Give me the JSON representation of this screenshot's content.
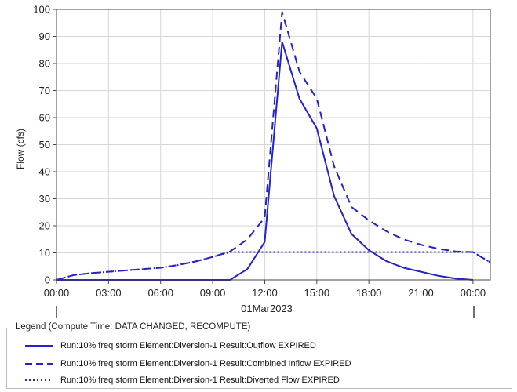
{
  "chart_data": {
    "type": "line",
    "ylabel": "Flow (cfs)",
    "ylim": [
      0,
      100
    ],
    "yticks": [
      "0",
      "10",
      "20",
      "30",
      "40",
      "50",
      "60",
      "70",
      "80",
      "90",
      "100"
    ],
    "xlim_hours": [
      0,
      25
    ],
    "xticks": [
      {
        "hour": 0,
        "label": "00:00"
      },
      {
        "hour": 3,
        "label": "03:00"
      },
      {
        "hour": 6,
        "label": "06:00"
      },
      {
        "hour": 9,
        "label": "09:00"
      },
      {
        "hour": 12,
        "label": "12:00"
      },
      {
        "hour": 15,
        "label": "15:00"
      },
      {
        "hour": 18,
        "label": "18:00"
      },
      {
        "hour": 21,
        "label": "21:00"
      },
      {
        "hour": 24,
        "label": "00:00"
      }
    ],
    "date_label": "01Mar2023",
    "grid": true,
    "line_color": "#2323c8",
    "series": [
      {
        "name": "Run:10% freq storm Element:Diversion-1 Result:Outflow EXPIRED",
        "style": "solid",
        "x": [
          0,
          10,
          11,
          12,
          13,
          14,
          15,
          16,
          17,
          18,
          19,
          20,
          21,
          22,
          23,
          24
        ],
        "y": [
          0,
          0,
          4,
          14,
          88,
          67,
          56,
          31,
          17,
          11,
          7,
          4.5,
          3,
          1.5,
          0.5,
          0
        ]
      },
      {
        "name": "Run:10% freq storm Element:Diversion-1 Result:Combined Inflow EXPIRED",
        "style": "dashed",
        "x": [
          0,
          1,
          2,
          3,
          4,
          5,
          6,
          7,
          8,
          9,
          10,
          11,
          12,
          13,
          14,
          15,
          16,
          17,
          18,
          19,
          20,
          21,
          22,
          23,
          24,
          25
        ],
        "y": [
          0,
          1.8,
          2.5,
          3,
          3.5,
          4,
          4.5,
          5.5,
          6.8,
          8.5,
          10.5,
          15,
          23,
          99,
          77,
          67,
          42,
          27,
          22,
          18,
          15,
          13,
          11.5,
          10.5,
          10.3,
          6.5
        ]
      },
      {
        "name": "Run:10% freq storm Element:Diversion-1 Result:Diverted Flow EXPIRED",
        "style": "dotted",
        "x": [
          0,
          1,
          2,
          3,
          4,
          5,
          6,
          7,
          8,
          9,
          10,
          11,
          12,
          24,
          25
        ],
        "y": [
          0,
          1.8,
          2.5,
          3,
          3.5,
          4,
          4.5,
          5.5,
          6.8,
          8.5,
          10.3,
          10.3,
          10.3,
          10.3,
          6.5
        ]
      }
    ]
  },
  "legend": {
    "title": "Legend (Compute Time: DATA CHANGED, RECOMPUTE)",
    "items": [
      "Run:10% freq storm Element:Diversion-1 Result:Outflow EXPIRED",
      "Run:10% freq storm Element:Diversion-1 Result:Combined Inflow EXPIRED",
      "Run:10% freq storm Element:Diversion-1 Result:Diverted Flow EXPIRED"
    ]
  }
}
